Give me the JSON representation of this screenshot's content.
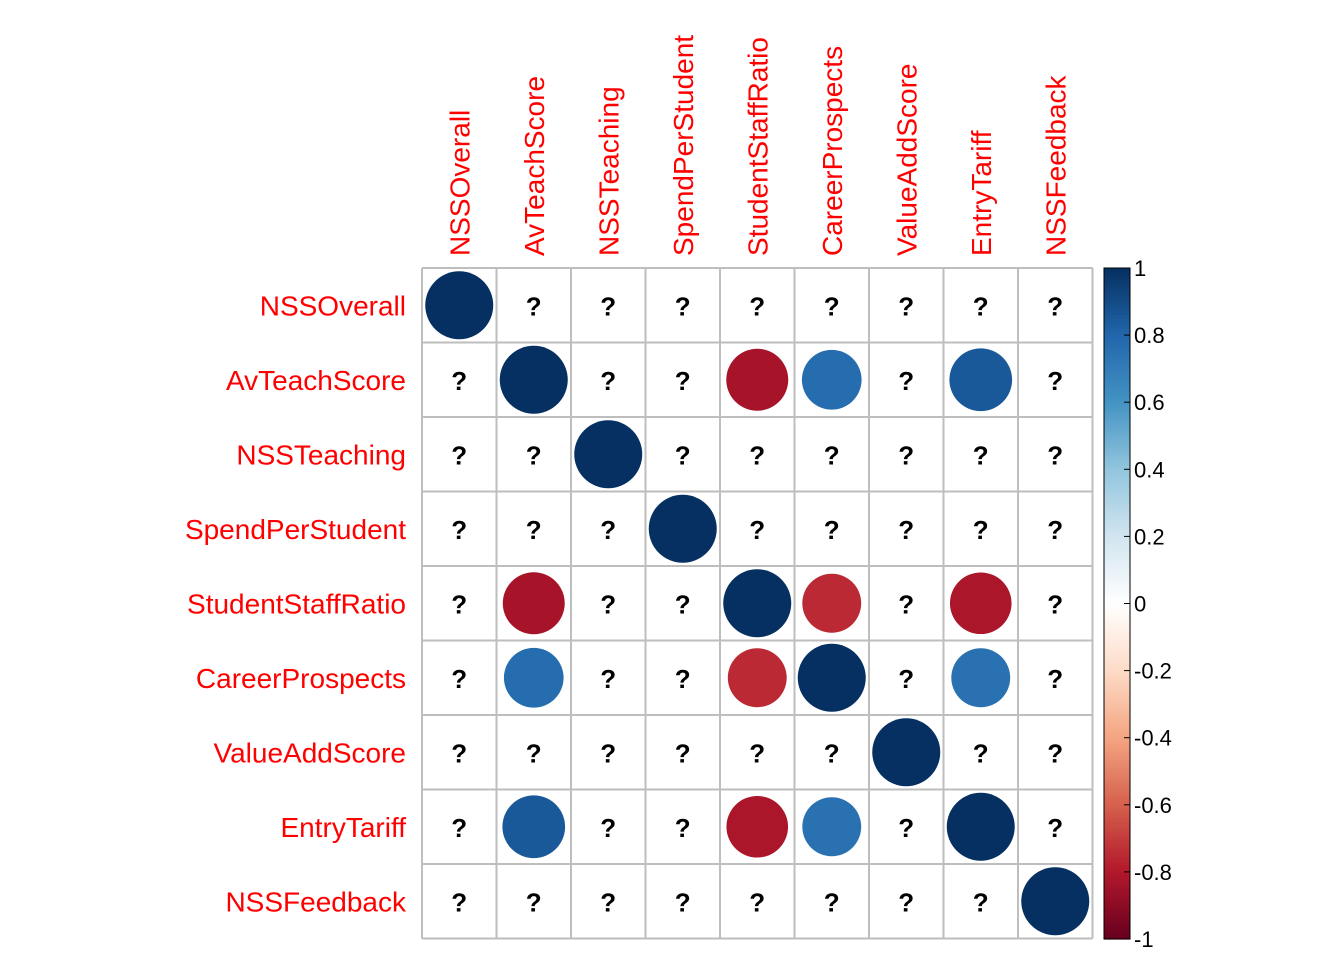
{
  "chart_data": {
    "type": "heatmap",
    "variables": [
      "NSSOverall",
      "AvTeachScore",
      "NSSTeaching",
      "SpendPerStudent",
      "StudentStaffRatio",
      "CareerProspects",
      "ValueAddScore",
      "EntryTariff",
      "NSSFeedback"
    ],
    "matrix": [
      [
        1,
        null,
        null,
        null,
        null,
        null,
        null,
        null,
        null
      ],
      [
        null,
        1,
        null,
        null,
        -0.83,
        0.77,
        null,
        0.85,
        null
      ],
      [
        null,
        null,
        1,
        null,
        null,
        null,
        null,
        null,
        null
      ],
      [
        null,
        null,
        null,
        1,
        null,
        null,
        null,
        null,
        null
      ],
      [
        null,
        -0.83,
        null,
        null,
        1,
        -0.75,
        null,
        -0.82,
        null
      ],
      [
        null,
        0.77,
        null,
        null,
        -0.75,
        1,
        null,
        0.75,
        null
      ],
      [
        null,
        null,
        null,
        null,
        null,
        null,
        1,
        null,
        null
      ],
      [
        null,
        0.85,
        null,
        null,
        -0.82,
        0.75,
        null,
        1,
        null
      ],
      [
        null,
        null,
        null,
        null,
        null,
        null,
        null,
        null,
        1
      ]
    ],
    "missing_symbol": "?",
    "colorbar": {
      "range": [
        -1,
        1
      ],
      "ticks": [
        "1",
        "0.8",
        "0.6",
        "0.4",
        "0.2",
        "0",
        "-0.2",
        "-0.4",
        "-0.6",
        "-0.8",
        "-1"
      ]
    },
    "label_color": "#ff0000",
    "grid_color": "#bebebe"
  }
}
